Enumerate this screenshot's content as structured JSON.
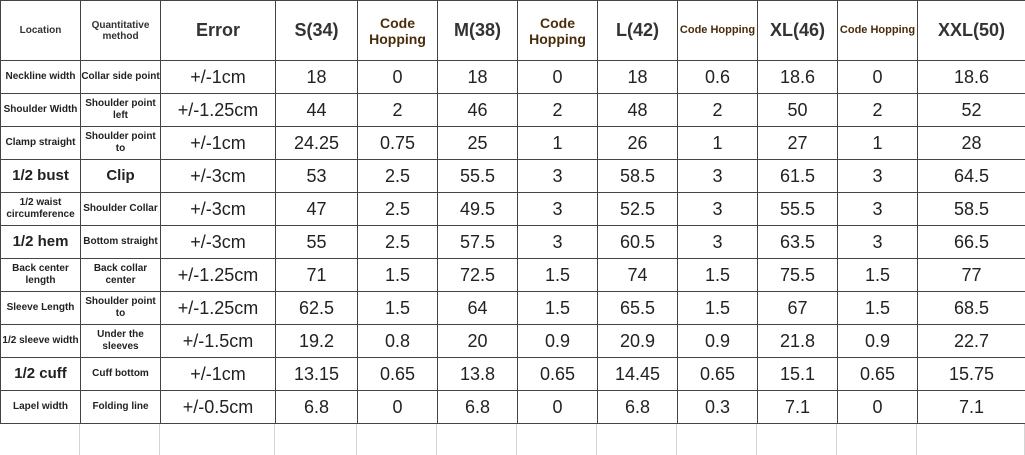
{
  "table": {
    "header": [
      "Location",
      "Quantitative method",
      "Error",
      "S(34)",
      "Code Hopping",
      "M(38)",
      "Code Hopping",
      "L(42)",
      "Code Hopping",
      "XL(46)",
      "Code Hopping",
      "XXL(50)"
    ],
    "rows": [
      [
        "Neckline width",
        "Collar side point",
        "+/-1cm",
        "18",
        "0",
        "18",
        "0",
        "18",
        "0.6",
        "18.6",
        "0",
        "18.6"
      ],
      [
        "Shoulder Width",
        "Shoulder point left",
        "+/-1.25cm",
        "44",
        "2",
        "46",
        "2",
        "48",
        "2",
        "50",
        "2",
        "52"
      ],
      [
        "Clamp straight",
        "Shoulder point to",
        "+/-1cm",
        "24.25",
        "0.75",
        "25",
        "1",
        "26",
        "1",
        "27",
        "1",
        "28"
      ],
      [
        "1/2 bust",
        "Clip",
        "+/-3cm",
        "53",
        "2.5",
        "55.5",
        "3",
        "58.5",
        "3",
        "61.5",
        "3",
        "64.5"
      ],
      [
        "1/2 waist circumference",
        "Shoulder Collar",
        "+/-3cm",
        "47",
        "2.5",
        "49.5",
        "3",
        "52.5",
        "3",
        "55.5",
        "3",
        "58.5"
      ],
      [
        "1/2 hem",
        "Bottom straight",
        "+/-3cm",
        "55",
        "2.5",
        "57.5",
        "3",
        "60.5",
        "3",
        "63.5",
        "3",
        "66.5"
      ],
      [
        "Back center length",
        "Back collar center",
        "+/-1.25cm",
        "71",
        "1.5",
        "72.5",
        "1.5",
        "74",
        "1.5",
        "75.5",
        "1.5",
        "77"
      ],
      [
        "Sleeve Length",
        "Shoulder point to",
        "+/-1.25cm",
        "62.5",
        "1.5",
        "64",
        "1.5",
        "65.5",
        "1.5",
        "67",
        "1.5",
        "68.5"
      ],
      [
        "1/2 sleeve width",
        "Under the sleeves",
        "+/-1.5cm",
        "19.2",
        "0.8",
        "20",
        "0.9",
        "20.9",
        "0.9",
        "21.8",
        "0.9",
        "22.7"
      ],
      [
        "1/2 cuff",
        "Cuff bottom",
        "+/-1cm",
        "13.15",
        "0.65",
        "13.8",
        "0.65",
        "14.45",
        "0.65",
        "15.1",
        "0.65",
        "15.75"
      ],
      [
        "Lapel width",
        "Folding line",
        "+/-0.5cm",
        "6.8",
        "0",
        "6.8",
        "0",
        "6.8",
        "0.3",
        "7.1",
        "0",
        "7.1"
      ]
    ]
  }
}
